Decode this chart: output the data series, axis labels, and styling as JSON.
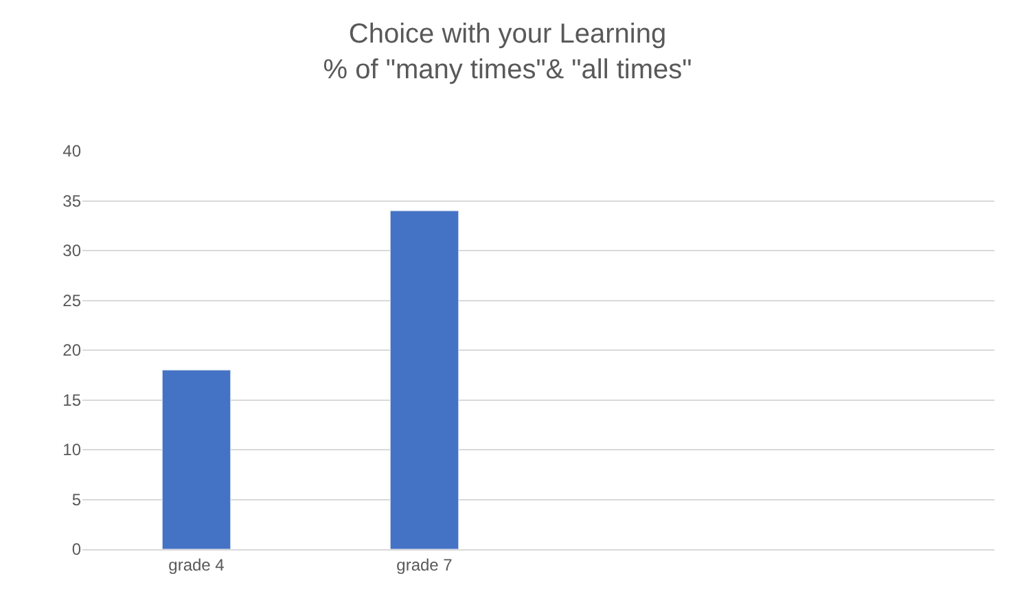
{
  "chart_data": {
    "type": "bar",
    "title": "Choice with your Learning\n% of \"many times\"& \"all times\"",
    "categories": [
      "grade 4",
      "grade 7",
      null,
      null
    ],
    "values": [
      18,
      34,
      null,
      null
    ],
    "color": "#4472c4",
    "ylim": [
      0,
      40
    ],
    "yticks": [
      0,
      5,
      10,
      15,
      20,
      25,
      30,
      35,
      40
    ],
    "grid": "y"
  }
}
